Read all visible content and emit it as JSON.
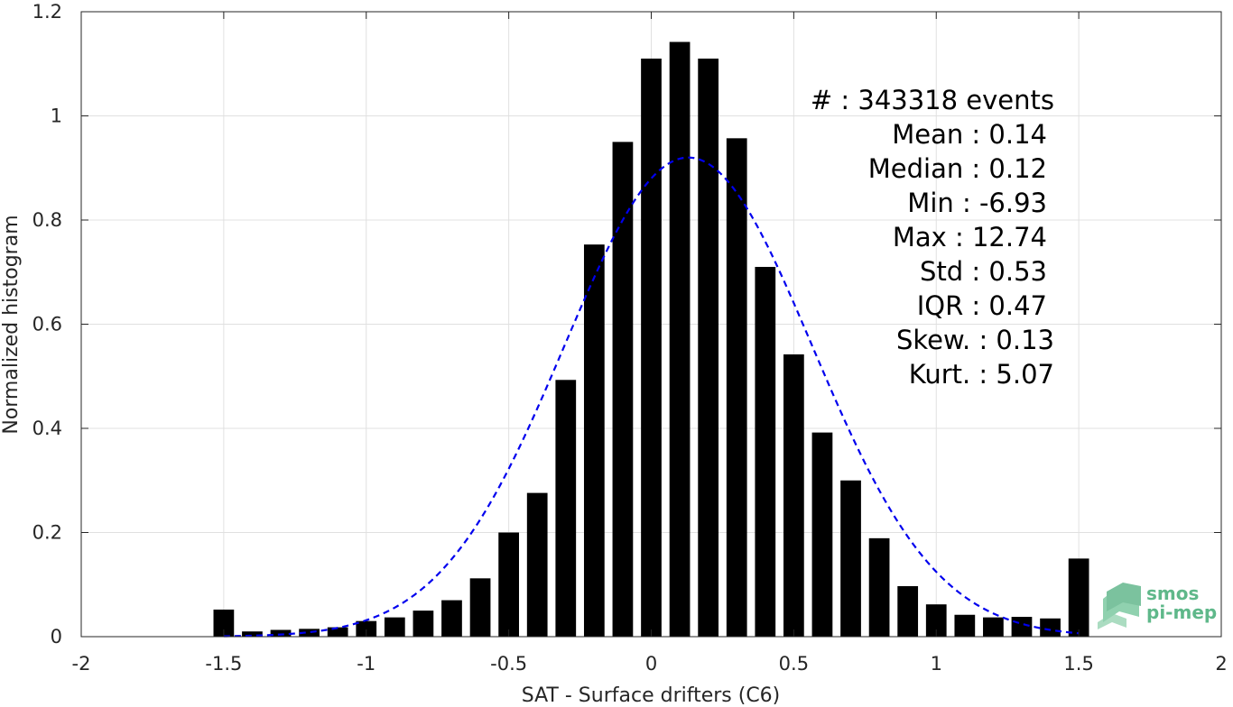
{
  "chart_data": {
    "type": "bar",
    "xlabel": "SAT - Surface drifters (C6)",
    "ylabel": "Normalized histogram",
    "xlim": [
      -2,
      2
    ],
    "ylim": [
      0,
      1.2
    ],
    "x_ticks": [
      "-2",
      "-1.5",
      "-1",
      "-0.5",
      "0",
      "0.5",
      "1",
      "1.5",
      "2"
    ],
    "y_ticks": [
      "0",
      "0.2",
      "0.4",
      "0.6",
      "0.8",
      "1",
      "1.2"
    ],
    "grid": true,
    "bin_width": 0.1,
    "x": [
      -1.5,
      -1.4,
      -1.3,
      -1.2,
      -1.1,
      -1.0,
      -0.9,
      -0.8,
      -0.7,
      -0.6,
      -0.5,
      -0.4,
      -0.3,
      -0.2,
      -0.1,
      0.0,
      0.1,
      0.2,
      0.3,
      0.4,
      0.5,
      0.6,
      0.7,
      0.8,
      0.9,
      1.0,
      1.1,
      1.2,
      1.3,
      1.4,
      1.5
    ],
    "values": [
      0.052,
      0.01,
      0.013,
      0.015,
      0.018,
      0.03,
      0.037,
      0.05,
      0.07,
      0.112,
      0.2,
      0.276,
      0.493,
      0.753,
      0.95,
      1.11,
      1.142,
      1.11,
      0.957,
      0.71,
      0.542,
      0.392,
      0.3,
      0.189,
      0.097,
      0.062,
      0.042,
      0.037,
      0.038,
      0.035,
      0.15
    ],
    "series": [
      {
        "type": "line",
        "style": "dashed",
        "color": "#0000ee",
        "fit": "gaussian",
        "mean": 0.13,
        "std": 0.435,
        "peak": 0.92,
        "x_range": [
          -1.5,
          1.5
        ]
      }
    ],
    "annotations": [
      {
        "label": "#  : 343318 events"
      },
      {
        "label": "Mean : 0.14"
      },
      {
        "label": "Median : 0.12"
      },
      {
        "label": "Min : -6.93"
      },
      {
        "label": "Max : 12.74"
      },
      {
        "label": "Std : 0.53"
      },
      {
        "label": "IQR : 0.47"
      },
      {
        "label": "Skew. : 0.13"
      },
      {
        "label": "Kurt. : 5.07"
      }
    ],
    "colors": {
      "bars": "#000000",
      "fit": "#0000ee",
      "grid": "#e0e0e0",
      "axes": "#262626"
    }
  },
  "logo": {
    "line1": "smos",
    "line2": "pi-mep",
    "color": "#5fb88a"
  }
}
